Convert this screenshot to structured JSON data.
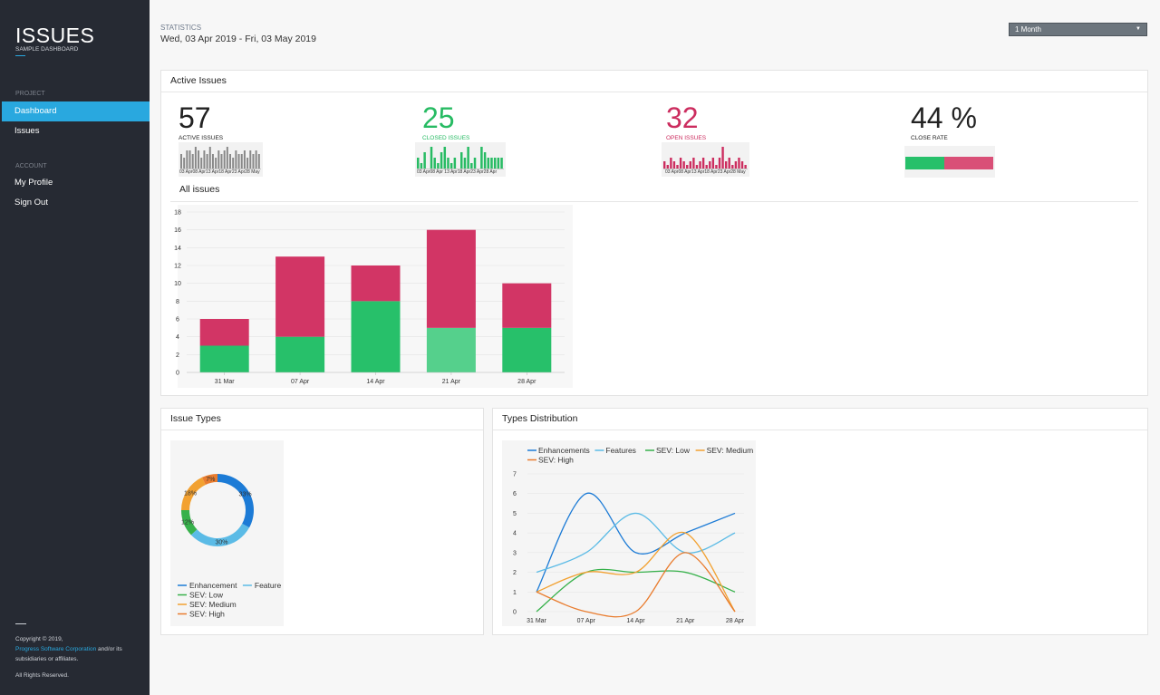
{
  "app": {
    "title": "ISSUES",
    "subtitle": "SAMPLE DASHBOARD"
  },
  "sidebar": {
    "project_label": "PROJECT",
    "project_items": [
      {
        "label": "Dashboard",
        "active": true
      },
      {
        "label": "Issues",
        "active": false
      }
    ],
    "account_label": "ACCOUNT",
    "account_items": [
      {
        "label": "My Profile"
      },
      {
        "label": "Sign Out"
      }
    ],
    "footer": {
      "copyright": "Copyright © 2019,",
      "company": "Progress Software Corporation",
      "company_suffix": " and/or its",
      "affiliates": "subsidiaries or affiliates.",
      "rights": "All Rights Reserved."
    }
  },
  "header": {
    "stat_label": "STATISTICS",
    "date_range": "Wed, 03 Apr 2019 - Fri, 03 May 2019",
    "period": "1 Month"
  },
  "active_issues": {
    "title": "Active Issues",
    "kpis": [
      {
        "value": "57",
        "label": "ACTIVE ISSUES",
        "color": "#222222"
      },
      {
        "value": "25",
        "label": "CLOSED ISSUES",
        "color": "#27bb63"
      },
      {
        "value": "32",
        "label": "OPEN ISSUES",
        "color": "#cc2d5f"
      },
      {
        "value": "44 %",
        "label": "CLOSE RATE",
        "color": "#222222"
      }
    ],
    "spark_axis_1": "03 Apr08 Apr13 Apr18 Apr23 Apr28 May",
    "spark_axis_2": "03 Apr08 Apr 13 Apr18 Apr23 Apr28 Apr",
    "spark_axis_3": "03 Apr08 Apr13 Apr18 Apr23 Apr28 May",
    "close_rate_fraction": 0.44,
    "all_issues_title": "All issues"
  },
  "issue_types": {
    "title": "Issue Types"
  },
  "types_distribution": {
    "title": "Types Distribution"
  },
  "colors": {
    "closed": "#27c06a",
    "open": "#d23565",
    "closed_highlight": "#55d08c",
    "enhancement": "#1c7bd6",
    "feature": "#5bbbe6",
    "sev_low": "#37b14b",
    "sev_medium": "#f2a131",
    "sev_high": "#e97c2e",
    "accent": "#29a8df"
  },
  "chart_data": [
    {
      "type": "bar",
      "name": "All issues",
      "categories": [
        "31 Mar",
        "07 Apr",
        "14 Apr",
        "21 Apr",
        "28 Apr"
      ],
      "series": [
        {
          "values": [
            3,
            4,
            8,
            5,
            5
          ],
          "color": "#27c06a"
        },
        {
          "values": [
            3,
            9,
            4,
            11,
            5
          ],
          "color": "#d23565"
        }
      ],
      "stacked": true,
      "ylim": [
        0,
        18
      ],
      "yticks": [
        "0",
        "2",
        "4",
        "6",
        "8",
        "10",
        "12",
        "14",
        "16",
        "18"
      ]
    },
    {
      "type": "pie",
      "name": "Issue Types",
      "donut": true,
      "slices": [
        {
          "label": "Enhancement",
          "value": 33,
          "text": "33%",
          "color": "#1c7bd6"
        },
        {
          "label": "Feature",
          "value": 30,
          "text": "30%",
          "color": "#5bbbe6"
        },
        {
          "label": "SEV: Low",
          "value": 12,
          "text": "12%",
          "color": "#37b14b"
        },
        {
          "label": "SEV: Medium",
          "value": 18,
          "text": "18%",
          "color": "#f2a131"
        },
        {
          "label": "SEV: High",
          "value": 7,
          "text": "7%",
          "color": "#e97c2e"
        }
      ]
    },
    {
      "type": "line",
      "name": "Types Distribution",
      "categories": [
        "31 Mar",
        "07 Apr",
        "14 Apr",
        "21 Apr",
        "28 Apr"
      ],
      "series": [
        {
          "name": "Enhancements",
          "values": [
            1,
            6,
            3,
            4,
            5
          ],
          "color": "#1c7bd6"
        },
        {
          "name": "Features",
          "values": [
            2,
            3,
            5,
            3,
            4
          ],
          "color": "#5bbbe6"
        },
        {
          "name": "SEV: Low",
          "values": [
            0,
            2,
            2,
            2,
            1
          ],
          "color": "#37b14b"
        },
        {
          "name": "SEV: Medium",
          "values": [
            1,
            2,
            2,
            4,
            0
          ],
          "color": "#f2a131"
        },
        {
          "name": "SEV: High",
          "values": [
            1,
            0,
            0,
            3,
            0
          ],
          "color": "#e97c2e"
        }
      ],
      "ylim": [
        0,
        7
      ],
      "yticks": [
        "0",
        "1",
        "2",
        "3",
        "4",
        "5",
        "6",
        "7"
      ],
      "smooth": true
    },
    {
      "type": "bar",
      "name": "Active issues sparkline",
      "values": [
        4,
        3,
        5,
        5,
        4,
        6,
        5,
        3,
        5,
        4,
        6,
        4,
        3,
        5,
        4,
        5,
        6,
        4,
        3,
        5,
        4,
        4,
        5,
        3,
        5,
        4,
        5,
        4
      ],
      "color": "#888888"
    },
    {
      "type": "bar",
      "name": "Closed issues sparkline",
      "values": [
        2,
        1,
        3,
        0,
        4,
        2,
        1,
        3,
        4,
        2,
        1,
        2,
        0,
        3,
        2,
        4,
        1,
        2,
        0,
        4,
        3,
        2,
        2,
        2,
        2,
        2
      ],
      "color": "#27bb63"
    },
    {
      "type": "bar",
      "name": "Open issues sparkline",
      "values": [
        2,
        1,
        3,
        2,
        1,
        3,
        2,
        1,
        2,
        3,
        1,
        2,
        3,
        1,
        2,
        3,
        1,
        3,
        6,
        2,
        3,
        1,
        2,
        3,
        2,
        1
      ],
      "color": "#cc2d5f"
    }
  ]
}
